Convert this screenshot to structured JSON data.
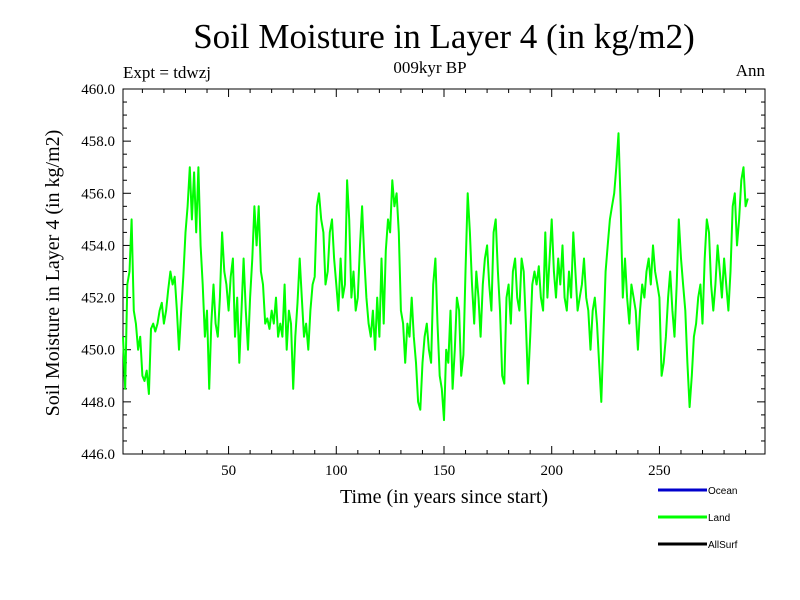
{
  "chart_data": {
    "type": "line",
    "title": "Soil Moisture in Layer 4 (in kg/m2)",
    "subtitle": "009kyr BP",
    "left_annotation": "Expt = tdwzj",
    "right_annotation": "Ann",
    "xlabel": "Time (in years since start)",
    "ylabel": "Soil Moisture in Layer 4 (in kg/m2)",
    "xlim": [
      1,
      299
    ],
    "ylim": [
      446.0,
      460.0
    ],
    "x_ticks": [
      50,
      100,
      150,
      200,
      250
    ],
    "x_tick_labels": [
      "50",
      "100",
      "150",
      "200",
      "250"
    ],
    "y_ticks": [
      446,
      448,
      450,
      452,
      454,
      456,
      458,
      460
    ],
    "y_tick_labels": [
      "446.0",
      "448.0",
      "450.0",
      "452.0",
      "454.0",
      "456.0",
      "458.0",
      "460.0"
    ],
    "x_minor_step": 10,
    "y_minor_step": 0.5,
    "legend": [
      {
        "name": "Ocean",
        "color": "#0000cc"
      },
      {
        "name": "Land",
        "color": "#00ff00"
      },
      {
        "name": "AllSurf",
        "color": "#000000"
      }
    ],
    "series": [
      {
        "name": "Land",
        "color": "#00ff00",
        "x_start": 1,
        "x_step": 1,
        "values": [
          450.5,
          448.5,
          452.5,
          453.0,
          455.0,
          451.5,
          451.0,
          450.0,
          450.5,
          449.0,
          448.8,
          449.2,
          448.3,
          450.8,
          451.0,
          450.7,
          451.0,
          451.5,
          451.8,
          451.0,
          451.5,
          452.3,
          453.0,
          452.5,
          452.8,
          451.5,
          450.0,
          451.5,
          452.8,
          454.5,
          455.5,
          457.0,
          455.0,
          456.8,
          454.5,
          457.0,
          454.0,
          452.5,
          450.5,
          451.5,
          448.5,
          451.0,
          452.5,
          451.0,
          450.5,
          452.0,
          454.5,
          453.0,
          452.5,
          451.5,
          452.8,
          453.5,
          450.5,
          452.0,
          449.5,
          451.5,
          453.5,
          451.5,
          450.0,
          452.0,
          453.5,
          455.5,
          454.0,
          455.5,
          453.0,
          452.5,
          451.0,
          451.2,
          450.8,
          451.5,
          451.0,
          452.0,
          450.5,
          451.0,
          450.5,
          452.5,
          450.0,
          451.5,
          451.0,
          448.5,
          450.5,
          451.8,
          453.5,
          452.0,
          450.5,
          451.0,
          450.0,
          451.5,
          452.5,
          452.8,
          455.5,
          456.0,
          455.0,
          454.5,
          452.5,
          453.0,
          454.5,
          455.0,
          453.5,
          452.5,
          451.5,
          453.5,
          452.0,
          452.5,
          456.5,
          455.0,
          452.0,
          453.0,
          451.5,
          452.0,
          454.0,
          455.5,
          453.5,
          452.0,
          451.0,
          450.5,
          451.5,
          450.0,
          452.0,
          450.5,
          453.5,
          451.0,
          453.8,
          455.0,
          454.5,
          456.5,
          455.5,
          456.0,
          454.5,
          451.5,
          451.0,
          449.5,
          451.0,
          450.5,
          452.0,
          450.5,
          449.5,
          448.0,
          447.7,
          449.5,
          450.5,
          451.0,
          450.0,
          449.5,
          452.5,
          453.5,
          451.0,
          449.0,
          448.5,
          447.3,
          450.0,
          449.5,
          451.5,
          448.5,
          450.0,
          452.0,
          451.5,
          449.0,
          449.8,
          453.0,
          456.0,
          454.5,
          452.5,
          451.0,
          453.0,
          452.0,
          450.5,
          452.5,
          453.5,
          454.0,
          452.5,
          451.5,
          454.5,
          455.0,
          453.0,
          451.5,
          449.0,
          448.7,
          452.0,
          452.5,
          451.0,
          453.0,
          453.5,
          452.0,
          451.5,
          453.5,
          453.0,
          451.0,
          448.7,
          450.5,
          452.5,
          453.0,
          452.5,
          453.2,
          452.0,
          451.5,
          454.5,
          452.0,
          453.5,
          455.0,
          453.0,
          452.0,
          453.5,
          452.5,
          454.0,
          452.0,
          451.5,
          453.0,
          452.0,
          454.5,
          453.0,
          451.5,
          452.0,
          452.5,
          453.5,
          452.0,
          451.5,
          450.0,
          451.5,
          452.0,
          451.0,
          449.5,
          448.0,
          450.5,
          453.0,
          454.0,
          455.0,
          455.5,
          456.0,
          457.0,
          458.3,
          455.5,
          452.0,
          453.5,
          452.0,
          451.0,
          452.5,
          452.0,
          451.5,
          450.0,
          451.5,
          452.5,
          452.0,
          453.0,
          453.5,
          452.5,
          454.0,
          453.0,
          452.5,
          452.0,
          449.0,
          449.5,
          450.5,
          452.0,
          453.0,
          451.5,
          450.5,
          452.5,
          455.0,
          453.5,
          452.5,
          451.5,
          449.5,
          447.8,
          449.0,
          450.5,
          451.0,
          452.0,
          452.5,
          451.0,
          453.5,
          455.0,
          454.5,
          452.5,
          451.5,
          452.5,
          454.0,
          453.0,
          452.0,
          453.5,
          452.5,
          451.5,
          453.0,
          455.5,
          456.0,
          454.0,
          455.0,
          456.5,
          457.0,
          455.5,
          455.8
        ]
      }
    ]
  }
}
